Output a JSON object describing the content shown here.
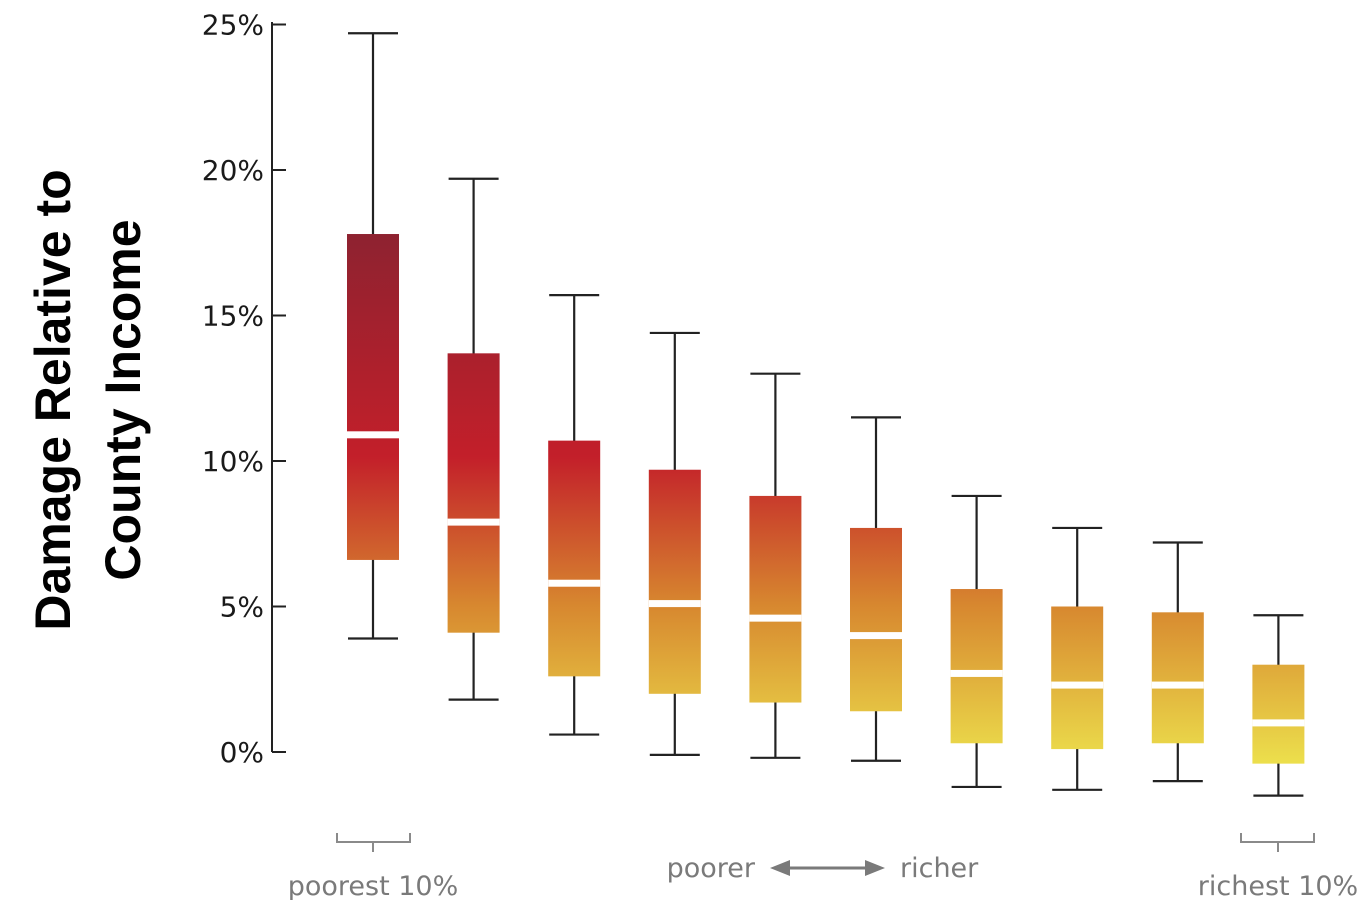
{
  "chart_data": {
    "type": "box",
    "ylabel_line1": "Damage Relative to",
    "ylabel_line2": "County Income",
    "y_ticks": [
      0,
      5,
      10,
      15,
      20,
      25
    ],
    "y_tick_labels": [
      "0%",
      "5%",
      "10%",
      "15%",
      "20%",
      "25%"
    ],
    "ylim": [
      -2,
      25
    ],
    "unit": "%",
    "colors": {
      "top": "#8e2230",
      "mid": "#c31f2a",
      "orange": "#d7872f",
      "bottom": "#ecdf4c",
      "whisker": "#222222",
      "median": "#ffffff"
    },
    "boxes": [
      {
        "whisker_low": 3.9,
        "q1": 6.6,
        "median": 10.9,
        "q3": 17.8,
        "whisker_high": 24.7
      },
      {
        "whisker_low": 1.8,
        "q1": 4.1,
        "median": 7.9,
        "q3": 13.7,
        "whisker_high": 19.7
      },
      {
        "whisker_low": 0.6,
        "q1": 2.6,
        "median": 5.8,
        "q3": 10.7,
        "whisker_high": 15.7
      },
      {
        "whisker_low": -0.1,
        "q1": 2.0,
        "median": 5.1,
        "q3": 9.7,
        "whisker_high": 14.4
      },
      {
        "whisker_low": -0.2,
        "q1": 1.7,
        "median": 4.6,
        "q3": 8.8,
        "whisker_high": 13.0
      },
      {
        "whisker_low": -0.3,
        "q1": 1.4,
        "median": 4.0,
        "q3": 7.7,
        "whisker_high": 11.5
      },
      {
        "whisker_low": -1.2,
        "q1": 0.3,
        "median": 2.7,
        "q3": 5.6,
        "whisker_high": 8.8
      },
      {
        "whisker_low": -1.3,
        "q1": 0.1,
        "median": 2.3,
        "q3": 5.0,
        "whisker_high": 7.7
      },
      {
        "whisker_low": -1.0,
        "q1": 0.3,
        "median": 2.3,
        "q3": 4.8,
        "whisker_high": 7.2
      },
      {
        "whisker_low": -1.5,
        "q1": -0.4,
        "median": 1.0,
        "q3": 3.0,
        "whisker_high": 4.7
      }
    ],
    "x_caption_left": "poorest 10%",
    "x_caption_middle_left": "poorer",
    "x_caption_middle_right": "richer",
    "x_caption_right": "richest 10%"
  }
}
